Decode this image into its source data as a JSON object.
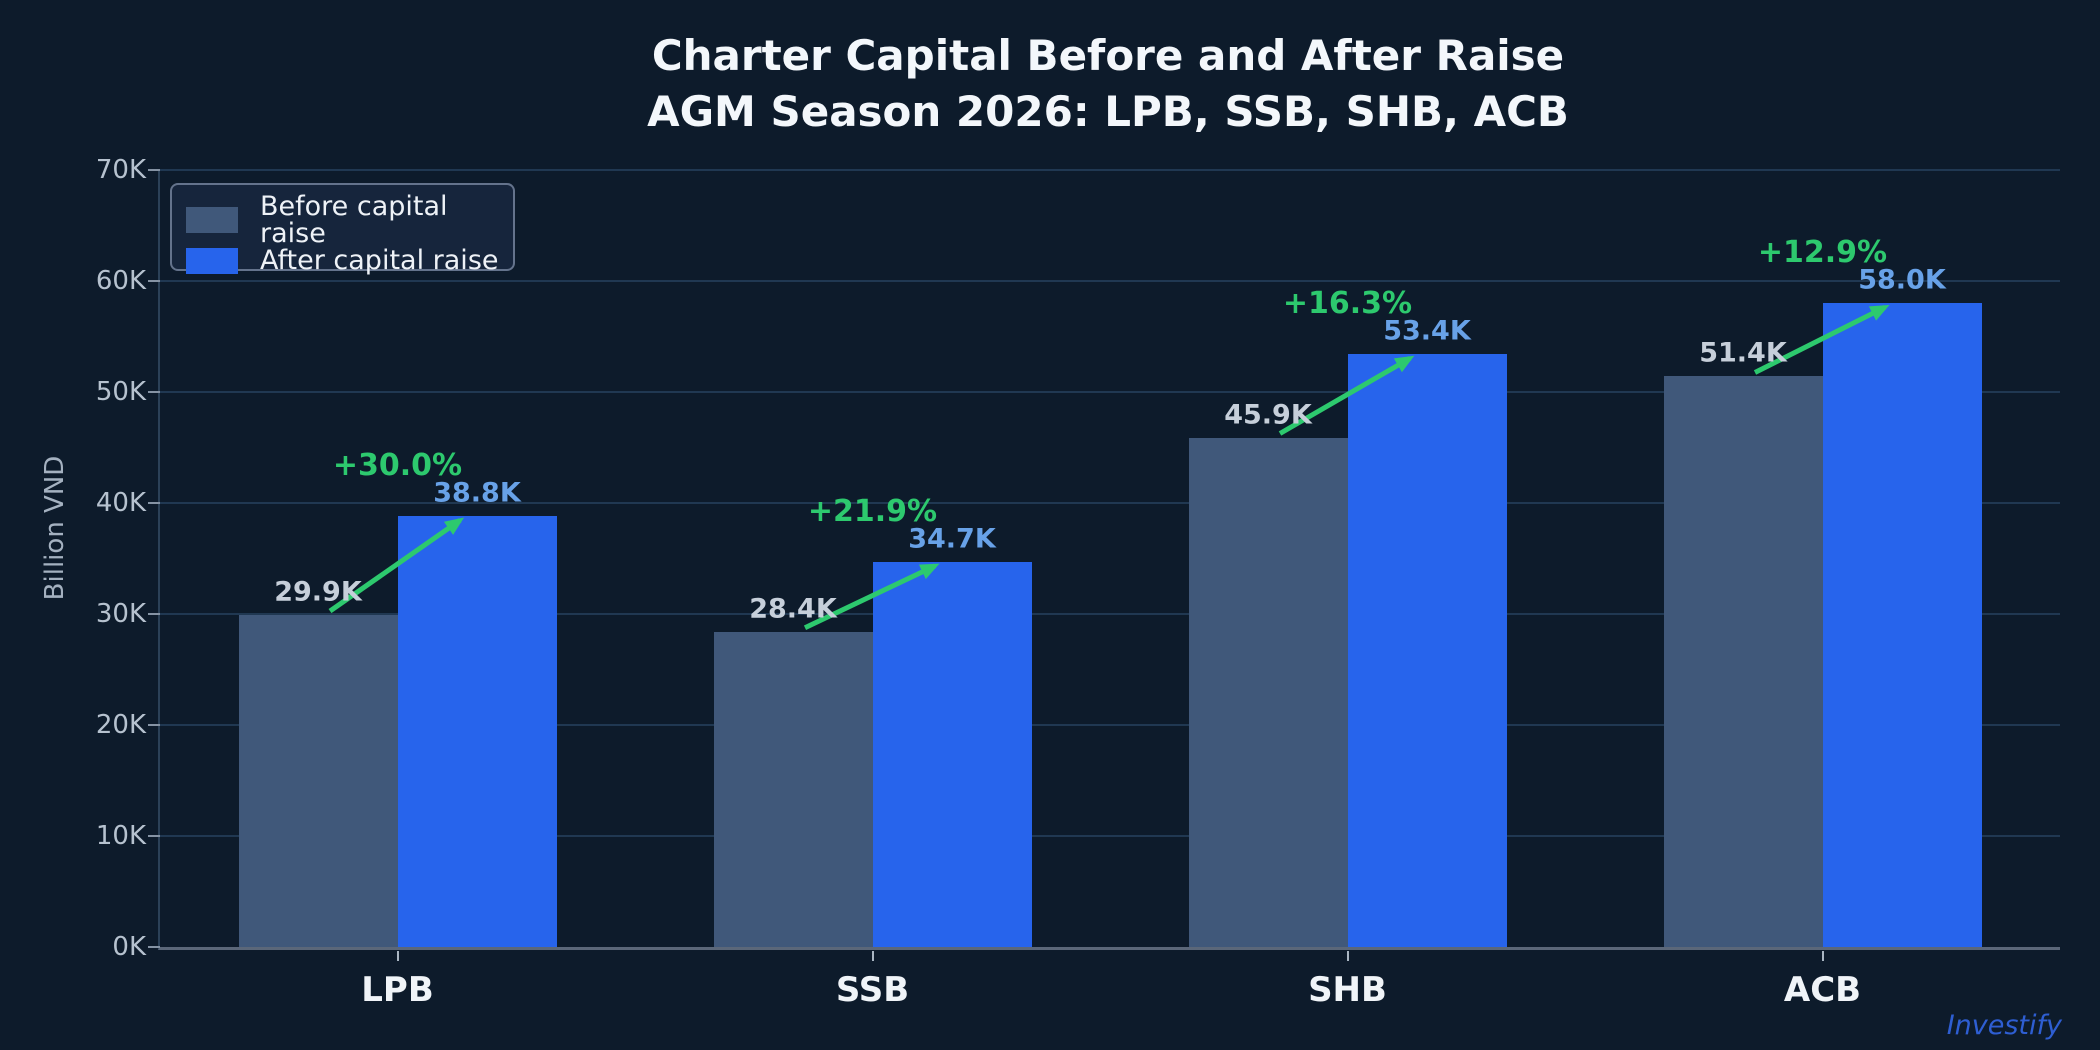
{
  "chart": {
    "title": "Charter Capital Before and After Raise",
    "subtitle": "AGM Season 2026: LPB, SSB, SHB, ACB",
    "ylabel": "Billion VND",
    "watermark": "Investify",
    "legend": [
      {
        "label": "Before capital raise",
        "color": "#40587a"
      },
      {
        "label": "After capital raise",
        "color": "#2764ec"
      }
    ]
  },
  "chart_data": {
    "type": "bar",
    "categories": [
      "LPB",
      "SSB",
      "SHB",
      "ACB"
    ],
    "series": [
      {
        "name": "Before capital raise",
        "color": "#40587a",
        "values": [
          29.9,
          28.4,
          45.9,
          51.4
        ],
        "labels": [
          "29.9K",
          "28.4K",
          "45.9K",
          "51.4K"
        ]
      },
      {
        "name": "After capital raise",
        "color": "#2764ec",
        "values": [
          38.8,
          34.7,
          53.4,
          58.0
        ],
        "labels": [
          "38.8K",
          "34.7K",
          "53.4K",
          "58.0K"
        ]
      }
    ],
    "pct_change_labels": [
      "+30.0%",
      "+21.9%",
      "+16.3%",
      "+12.9%"
    ],
    "ylabel": "Billion VND",
    "ylim": [
      0,
      70
    ],
    "yticks": [
      0,
      10,
      20,
      30,
      40,
      50,
      60,
      70
    ],
    "ytick_labels": [
      "0K",
      "10K",
      "20K",
      "30K",
      "40K",
      "50K",
      "60K",
      "70K"
    ],
    "grid": true,
    "legend_position": "upper-left"
  },
  "theme": {
    "background": "#0d1b2b",
    "title_color": "#f3f7fb",
    "before_bar": "#40587a",
    "after_bar": "#2764ec",
    "arrow_green": "#2dc96e",
    "pct_label_color": "#2dc96e",
    "before_value_label": "#c6cfda",
    "after_value_label": "#68a2e8",
    "gridline": "#203852",
    "baseline": "#5b6779",
    "tick_text": "#b6c2cf",
    "category_text": "#f0f4f8",
    "watermark_color": "#2e5ed2"
  }
}
